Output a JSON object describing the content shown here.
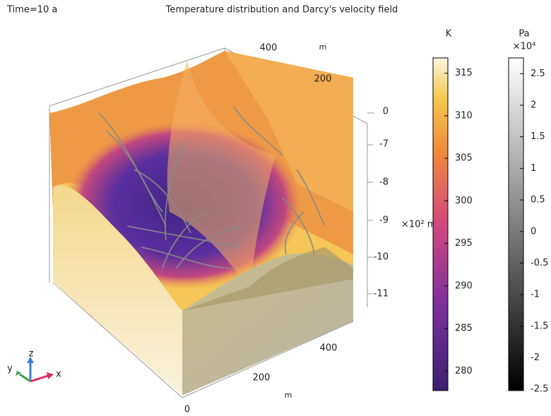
{
  "time_label": "Time=10 a",
  "title": "Temperature distribution and Darcy's velocity field",
  "axes": {
    "back_ticks": [
      400,
      200
    ],
    "back_unit": "m",
    "z_ticks": [
      0,
      -7,
      -8,
      -9,
      -10,
      -11
    ],
    "z_unit": "×10² m",
    "front_ticks": [
      400,
      200,
      0
    ],
    "front_unit": "m"
  },
  "triad": {
    "x": "x",
    "y": "y",
    "z": "z"
  },
  "colorbars": [
    {
      "unit": "K",
      "lim": [
        277.7,
        316.8
      ],
      "ticks": [
        315,
        310,
        305,
        300,
        295,
        290,
        285,
        280
      ]
    },
    {
      "unit": "Pa",
      "exponent": "×10⁴",
      "lim": [
        -2.52,
        2.75
      ],
      "ticks": [
        2.5,
        2,
        1.5,
        1,
        0.5,
        0,
        -0.5,
        -1,
        -1.5,
        -2,
        -2.5
      ]
    }
  ]
}
